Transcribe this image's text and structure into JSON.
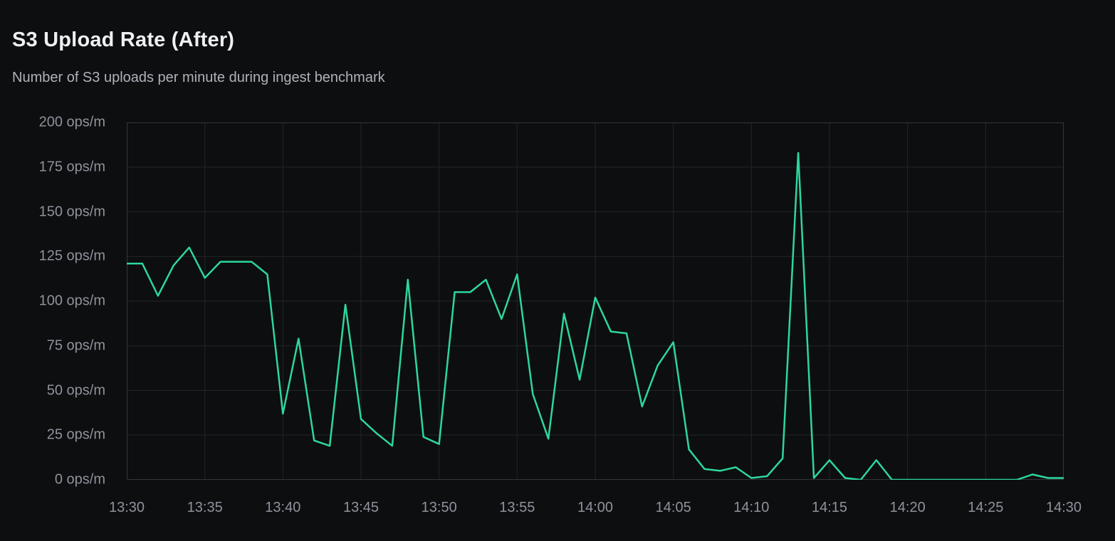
{
  "header": {
    "title": "S3 Upload Rate (After)",
    "subtitle": "Number of S3 uploads per minute during ingest benchmark"
  },
  "colors": {
    "background": "#0d0e10",
    "line": "#2dd79b",
    "grid": "#232529",
    "plot_border": "#33363c",
    "axis_text": "#8e939b",
    "title_text": "#eef0f2",
    "subtitle_text": "#aeb2b9"
  },
  "chart_data": {
    "type": "line",
    "title": "S3 Upload Rate (After)",
    "subtitle": "Number of S3 uploads per minute during ingest benchmark",
    "xlabel": "",
    "ylabel": "ops/m",
    "ylim": [
      0,
      200
    ],
    "grid": true,
    "legend_position": "none",
    "y_ticks": [
      0,
      25,
      50,
      75,
      100,
      125,
      150,
      175,
      200
    ],
    "y_tick_labels": [
      "0 ops/m",
      "25 ops/m",
      "50 ops/m",
      "75 ops/m",
      "100 ops/m",
      "125 ops/m",
      "150 ops/m",
      "175 ops/m",
      "200 ops/m"
    ],
    "x_tick_labels": [
      "13:30",
      "13:35",
      "13:40",
      "13:45",
      "13:50",
      "13:55",
      "14:00",
      "14:05",
      "14:10",
      "14:15",
      "14:20",
      "14:25",
      "14:30"
    ],
    "x": [
      "13:30",
      "13:31",
      "13:32",
      "13:33",
      "13:34",
      "13:35",
      "13:36",
      "13:37",
      "13:38",
      "13:39",
      "13:40",
      "13:41",
      "13:42",
      "13:43",
      "13:44",
      "13:45",
      "13:46",
      "13:47",
      "13:48",
      "13:49",
      "13:50",
      "13:51",
      "13:52",
      "13:53",
      "13:54",
      "13:55",
      "13:56",
      "13:57",
      "13:58",
      "13:59",
      "14:00",
      "14:01",
      "14:02",
      "14:03",
      "14:04",
      "14:05",
      "14:06",
      "14:07",
      "14:08",
      "14:09",
      "14:10",
      "14:11",
      "14:12",
      "14:13",
      "14:14",
      "14:15",
      "14:16",
      "14:17",
      "14:18",
      "14:19",
      "14:20",
      "14:21",
      "14:22",
      "14:23",
      "14:24",
      "14:25",
      "14:26",
      "14:27",
      "14:28",
      "14:29",
      "14:30"
    ],
    "series": [
      {
        "name": "S3 uploads per minute",
        "values": [
          121,
          121,
          103,
          120,
          130,
          113,
          122,
          122,
          122,
          115,
          37,
          79,
          22,
          19,
          98,
          34,
          26,
          19,
          112,
          24,
          20,
          105,
          105,
          112,
          90,
          115,
          48,
          23,
          93,
          56,
          102,
          83,
          82,
          41,
          64,
          77,
          17,
          6,
          5,
          7,
          1,
          2,
          12,
          183,
          1,
          11,
          1,
          0,
          11,
          0,
          0,
          0,
          0,
          0,
          0,
          0,
          0,
          0,
          3,
          1,
          1
        ]
      }
    ]
  }
}
